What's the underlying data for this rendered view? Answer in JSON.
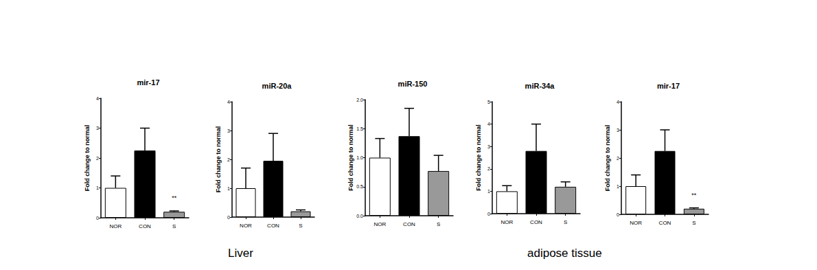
{
  "chart_data": [
    {
      "type": "bar",
      "title": "mir-17",
      "y_label": "Fold change to normal",
      "categories": [
        "NOR",
        "CON",
        "S"
      ],
      "values": [
        1.0,
        2.25,
        0.2
      ],
      "errors": [
        0.4,
        0.75,
        0.03
      ],
      "colors": [
        "#ffffff",
        "#000000",
        "#999999"
      ],
      "ylim": [
        0,
        4
      ],
      "yticks": [
        0,
        1,
        2,
        3,
        4
      ],
      "grid": false,
      "annotations": [
        {
          "category": "S",
          "text": "**"
        }
      ]
    },
    {
      "type": "bar",
      "title": "miR-20a",
      "y_label": "Fold change to normal",
      "categories": [
        "NOR",
        "CON",
        "S"
      ],
      "values": [
        1.0,
        1.95,
        0.2
      ],
      "errors": [
        0.7,
        0.95,
        0.05
      ],
      "colors": [
        "#ffffff",
        "#000000",
        "#999999"
      ],
      "ylim": [
        0,
        4
      ],
      "yticks": [
        0,
        1,
        2,
        3,
        4
      ],
      "grid": false
    },
    {
      "type": "bar",
      "title": "miR-150",
      "y_label": "Fold change to normal",
      "categories": [
        "NOR",
        "CON",
        "S"
      ],
      "values": [
        1.0,
        1.37,
        0.77
      ],
      "errors": [
        0.33,
        0.48,
        0.27
      ],
      "colors": [
        "#ffffff",
        "#000000",
        "#999999"
      ],
      "ylim": [
        0,
        2
      ],
      "yticks": [
        {
          "value": 0,
          "label": "0.0"
        },
        {
          "value": 0.5,
          "label": "0.5"
        },
        {
          "value": 1,
          "label": "1.0"
        },
        {
          "value": 1.5,
          "label": "1.5"
        },
        {
          "value": 2,
          "label": "2.0"
        }
      ],
      "grid": false
    },
    {
      "type": "bar",
      "title": "miR-34a",
      "y_label": "Fold change to normal",
      "categories": [
        "NOR",
        "CON",
        "S"
      ],
      "values": [
        1.0,
        2.8,
        1.2
      ],
      "errors": [
        0.25,
        1.2,
        0.22
      ],
      "colors": [
        "#ffffff",
        "#000000",
        "#999999"
      ],
      "ylim": [
        0,
        5
      ],
      "yticks": [
        0,
        1,
        2,
        3,
        4,
        5
      ],
      "grid": false
    },
    {
      "type": "bar",
      "title": "mir-17",
      "y_label": "Fold change to normal",
      "categories": [
        "NOR",
        "CON",
        "S"
      ],
      "values": [
        1.0,
        2.25,
        0.2
      ],
      "errors": [
        0.4,
        0.75,
        0.03
      ],
      "colors": [
        "#ffffff",
        "#000000",
        "#999999"
      ],
      "ylim": [
        0,
        4
      ],
      "yticks": [
        0,
        1,
        2,
        3,
        4
      ],
      "grid": false,
      "annotations": [
        {
          "category": "S",
          "text": "**"
        }
      ]
    }
  ],
  "sections": [
    {
      "text": "Liver"
    },
    {
      "text": "adipose tissue"
    }
  ]
}
